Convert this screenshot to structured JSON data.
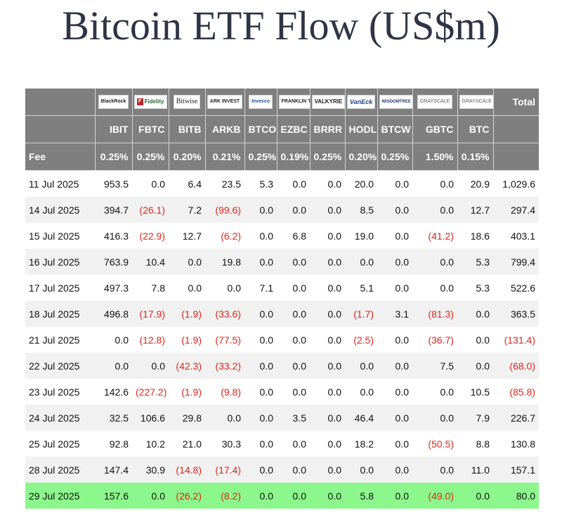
{
  "page": {
    "title": "Bitcoin ETF Flow (US$m)"
  },
  "table": {
    "logos": [
      "BlackRock",
      "Fidelity",
      "Bitwise",
      "ARK INVEST",
      "Invesco",
      "FRANKLIN TEMPLETON",
      "VALKYRIE",
      "VanEck",
      "WISDOMTREE",
      "GRAYSCALE",
      "GRAYSCALE"
    ],
    "total_label": "Total",
    "tickers": [
      "IBIT",
      "FBTC",
      "BITB",
      "ARKB",
      "BTCO",
      "EZBC",
      "BRRR",
      "HODL",
      "BTCW",
      "GBTC",
      "BTC"
    ],
    "fee_label": "Fee",
    "fees": [
      "0.25%",
      "0.25%",
      "0.20%",
      "0.21%",
      "0.25%",
      "0.19%",
      "0.25%",
      "0.20%",
      "0.25%",
      "1.50%",
      "0.15%"
    ],
    "rows": [
      {
        "date": "11 Jul 2025",
        "values": [
          "953.5",
          "0.0",
          "6.4",
          "23.5",
          "5.3",
          "0.0",
          "0.0",
          "20.0",
          "0.0",
          "0.0",
          "20.9"
        ],
        "total": "1,029.6"
      },
      {
        "date": "14 Jul 2025",
        "values": [
          "394.7",
          "(26.1)",
          "7.2",
          "(99.6)",
          "0.0",
          "0.0",
          "0.0",
          "8.5",
          "0.0",
          "0.0",
          "12.7"
        ],
        "total": "297.4"
      },
      {
        "date": "15 Jul 2025",
        "values": [
          "416.3",
          "(22.9)",
          "12.7",
          "(6.2)",
          "0.0",
          "6.8",
          "0.0",
          "19.0",
          "0.0",
          "(41.2)",
          "18.6"
        ],
        "total": "403.1"
      },
      {
        "date": "16 Jul 2025",
        "values": [
          "763.9",
          "10.4",
          "0.0",
          "19.8",
          "0.0",
          "0.0",
          "0.0",
          "0.0",
          "0.0",
          "0.0",
          "5.3"
        ],
        "total": "799.4"
      },
      {
        "date": "17 Jul 2025",
        "values": [
          "497.3",
          "7.8",
          "0.0",
          "0.0",
          "7.1",
          "0.0",
          "0.0",
          "5.1",
          "0.0",
          "0.0",
          "5.3"
        ],
        "total": "522.6"
      },
      {
        "date": "18 Jul 2025",
        "values": [
          "496.8",
          "(17.9)",
          "(1.9)",
          "(33.6)",
          "0.0",
          "0.0",
          "0.0",
          "(1.7)",
          "3.1",
          "(81.3)",
          "0.0"
        ],
        "total": "363.5"
      },
      {
        "date": "21 Jul 2025",
        "values": [
          "0.0",
          "(12.8)",
          "(1.9)",
          "(77.5)",
          "0.0",
          "0.0",
          "0.0",
          "(2.5)",
          "0.0",
          "(36.7)",
          "0.0"
        ],
        "total": "(131.4)"
      },
      {
        "date": "22 Jul 2025",
        "values": [
          "0.0",
          "0.0",
          "(42.3)",
          "(33.2)",
          "0.0",
          "0.0",
          "0.0",
          "0.0",
          "0.0",
          "7.5",
          "0.0"
        ],
        "total": "(68.0)"
      },
      {
        "date": "23 Jul 2025",
        "values": [
          "142.6",
          "(227.2)",
          "(1.9)",
          "(9.8)",
          "0.0",
          "0.0",
          "0.0",
          "0.0",
          "0.0",
          "0.0",
          "10.5"
        ],
        "total": "(85.8)"
      },
      {
        "date": "24 Jul 2025",
        "values": [
          "32.5",
          "106.6",
          "29.8",
          "0.0",
          "0.0",
          "3.5",
          "0.0",
          "46.4",
          "0.0",
          "0.0",
          "7.9"
        ],
        "total": "226.7"
      },
      {
        "date": "25 Jul 2025",
        "values": [
          "92.8",
          "10.2",
          "21.0",
          "30.3",
          "0.0",
          "0.0",
          "0.0",
          "18.2",
          "0.0",
          "(50.5)",
          "8.8"
        ],
        "total": "130.8"
      },
      {
        "date": "28 Jul 2025",
        "values": [
          "147.4",
          "30.9",
          "(14.8)",
          "(17.4)",
          "0.0",
          "0.0",
          "0.0",
          "0.0",
          "0.0",
          "0.0",
          "11.0"
        ],
        "total": "157.1"
      },
      {
        "date": "29 Jul 2025",
        "values": [
          "157.6",
          "0.0",
          "(26.2)",
          "(8.2)",
          "0.0",
          "0.0",
          "0.0",
          "5.8",
          "0.0",
          "(49.0)",
          "0.0"
        ],
        "total": "80.0",
        "highlight": true
      }
    ]
  },
  "colors": {
    "header_bg": "#7f7f7f",
    "negative": "#e0241b",
    "highlight_row": "#8cf78c",
    "title": "#2f3446"
  }
}
